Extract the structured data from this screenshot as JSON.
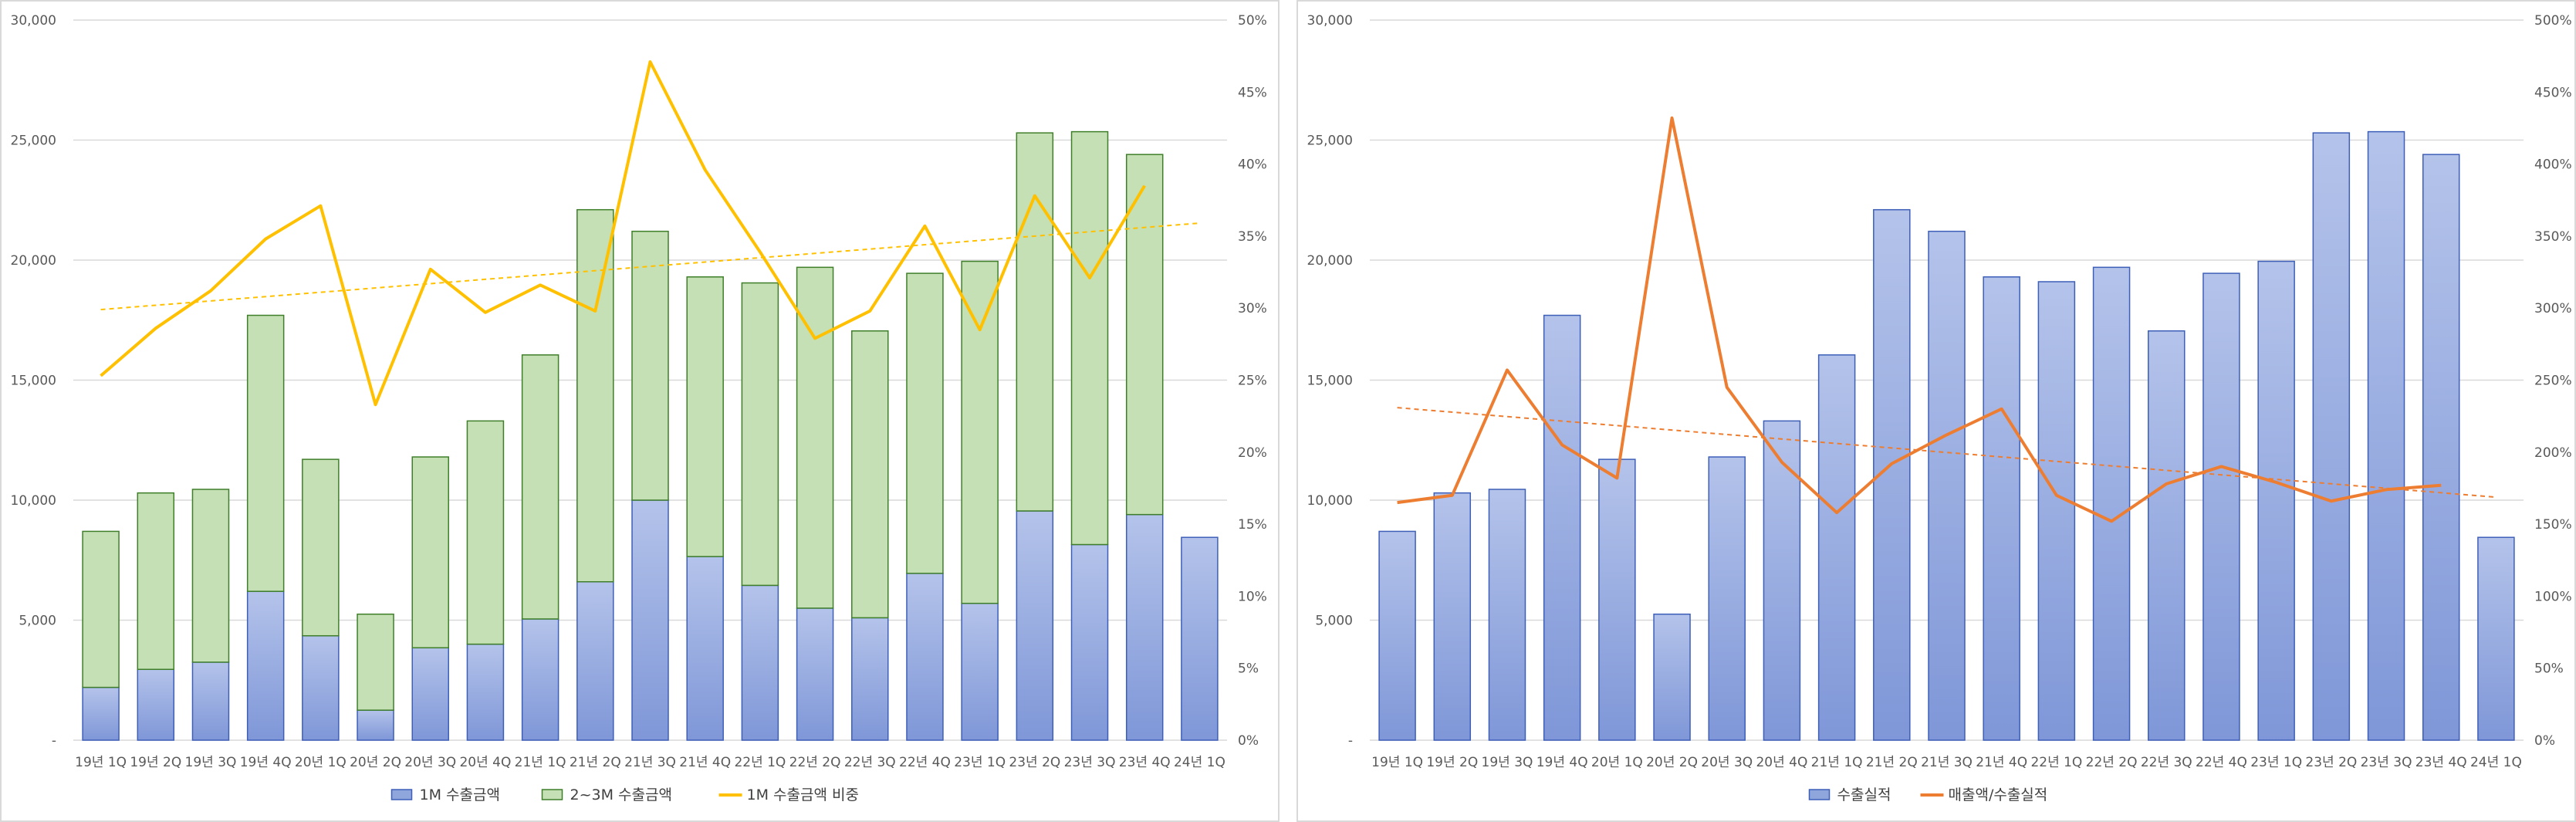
{
  "chart_data": [
    {
      "type": "bar",
      "stacked": true,
      "categories": [
        "19년 1Q",
        "19년 2Q",
        "19년 3Q",
        "19년 4Q",
        "20년 1Q",
        "20년 2Q",
        "20년 3Q",
        "20년 4Q",
        "21년 1Q",
        "21년 2Q",
        "21년 3Q",
        "21년 4Q",
        "22년 1Q",
        "22년 2Q",
        "22년 3Q",
        "22년 4Q",
        "23년 1Q",
        "23년 2Q",
        "23년 3Q",
        "23년 4Q",
        "24년 1Q"
      ],
      "series": [
        {
          "name": "1M 수출금액",
          "type": "bar",
          "axis": "left",
          "color": "#8fa6dc",
          "values": [
            2200,
            2950,
            3250,
            6200,
            4350,
            1250,
            3850,
            4000,
            5050,
            6600,
            10000,
            7650,
            6450,
            5500,
            5100,
            6950,
            5700,
            9550,
            8150,
            9400,
            8450
          ]
        },
        {
          "name": "2~3M 수출금액",
          "type": "bar",
          "axis": "left",
          "color": "#c5e0b4",
          "values": [
            6500,
            7350,
            7200,
            11500,
            7350,
            4000,
            7950,
            9300,
            11000,
            15500,
            11200,
            11650,
            12600,
            14200,
            11950,
            12500,
            14250,
            15750,
            17200,
            15000,
            null
          ]
        },
        {
          "name": "1M 수출금액 비중",
          "type": "line",
          "axis": "right",
          "color": "#ffc000",
          "values": [
            25.3,
            28.6,
            31.2,
            34.8,
            37.1,
            23.3,
            32.7,
            29.7,
            31.6,
            29.8,
            47.1,
            39.6,
            33.9,
            27.9,
            29.8,
            35.7,
            28.5,
            37.8,
            32.1,
            38.5,
            null
          ]
        }
      ],
      "trendline": {
        "series": "1M 수출금액 비중",
        "style": "dashed",
        "color": "#ffc000"
      },
      "y_left": {
        "lim": [
          0,
          30000
        ],
        "ticks": [
          "-",
          "5,000",
          "10,000",
          "15,000",
          "20,000",
          "25,000",
          "30,000"
        ]
      },
      "y_right": {
        "lim": [
          0,
          50
        ],
        "ticks": [
          "0%",
          "5%",
          "10%",
          "15%",
          "20%",
          "25%",
          "30%",
          "35%",
          "40%",
          "45%",
          "50%"
        ]
      },
      "grid": true,
      "legend": "bottom"
    },
    {
      "type": "bar",
      "categories": [
        "19년 1Q",
        "19년 2Q",
        "19년 3Q",
        "19년 4Q",
        "20년 1Q",
        "20년 2Q",
        "20년 3Q",
        "20년 4Q",
        "21년 1Q",
        "21년 2Q",
        "21년 3Q",
        "21년 4Q",
        "22년 1Q",
        "22년 2Q",
        "22년 3Q",
        "22년 4Q",
        "23년 1Q",
        "23년 2Q",
        "23년 3Q",
        "23년 4Q",
        "24년 1Q"
      ],
      "series": [
        {
          "name": "수출실적",
          "type": "bar",
          "axis": "left",
          "color": "#8fa6dc",
          "values": [
            8700,
            10300,
            10450,
            17700,
            11700,
            5250,
            11800,
            13300,
            16050,
            22100,
            21200,
            19300,
            19100,
            19700,
            17050,
            19450,
            19950,
            25300,
            25350,
            24400,
            8450
          ]
        },
        {
          "name": "매출액/수출실적",
          "type": "line",
          "axis": "right",
          "color": "#ed7d31",
          "values": [
            165,
            170,
            257,
            205,
            182,
            432,
            245,
            193,
            158,
            192,
            212,
            230,
            170,
            152,
            178,
            190,
            179,
            166,
            174,
            177,
            null
          ]
        }
      ],
      "trendline": {
        "series": "매출액/수출실적",
        "style": "dashed",
        "color": "#ed7d31"
      },
      "y_left": {
        "lim": [
          0,
          30000
        ],
        "ticks": [
          "-",
          "5,000",
          "10,000",
          "15,000",
          "20,000",
          "25,000",
          "30,000"
        ]
      },
      "y_right": {
        "lim": [
          0,
          500
        ],
        "ticks": [
          "0%",
          "50%",
          "100%",
          "150%",
          "200%",
          "250%",
          "300%",
          "350%",
          "400%",
          "450%",
          "500%"
        ]
      },
      "grid": true,
      "legend": "bottom"
    }
  ]
}
